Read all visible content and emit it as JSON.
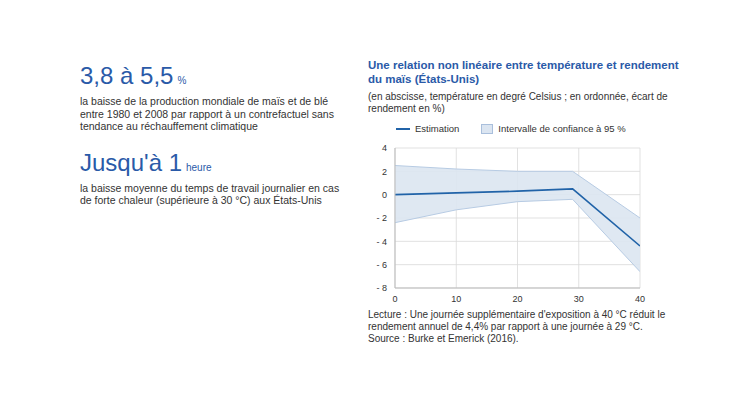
{
  "key_figures": [
    {
      "value": "3,8 à 5,5",
      "unit": "%",
      "text": "la baisse de la production mondiale de maïs et de blé entre 1980 et 2008 par rapport à un contrefactuel sans tendance au réchauffement climatique"
    },
    {
      "value": "Jusqu'à 1",
      "unit": "heure",
      "text": "la baisse moyenne du temps de travail journalier en cas de forte chaleur (supérieure à 30 °C) aux États-Unis"
    }
  ],
  "chart_data": {
    "type": "line",
    "title": "Une relation non linéaire entre température et rendement du maïs (États-Unis)",
    "subtitle": "(en abscisse, température en degré Celsius ; en ordonnée, écart de rendement en %)",
    "x": [
      0,
      10,
      20,
      29,
      40
    ],
    "series": [
      {
        "name": "Estimation",
        "type": "line",
        "color": "#2163a8",
        "values": [
          0,
          0.15,
          0.3,
          0.5,
          -4.4
        ]
      },
      {
        "name": "Intervalle de confiance à 95 %",
        "type": "band",
        "color": "#dbe5f1",
        "lower": [
          -2.4,
          -1.3,
          -0.6,
          -0.4,
          -6.6
        ],
        "upper": [
          2.5,
          2.2,
          2.0,
          2.0,
          -2.0
        ]
      }
    ],
    "xlim": [
      0,
      40
    ],
    "xticks": [
      0,
      10,
      20,
      30,
      40
    ],
    "ylim": [
      -8,
      4
    ],
    "yticks": [
      {
        "value": -8,
        "label": "- 8"
      },
      {
        "value": -6,
        "label": "- 6"
      },
      {
        "value": -4,
        "label": "- 4"
      },
      {
        "value": -2,
        "label": "- 2"
      },
      0,
      2,
      4
    ],
    "grid": true,
    "legend": "top",
    "note": "Lecture : Une journée supplémentaire d'exposition à 40 °C réduit le rendement annuel de 4,4% par rapport à une journée à 29 °C.",
    "source": "Source : Burke et Emerick (2016)."
  }
}
